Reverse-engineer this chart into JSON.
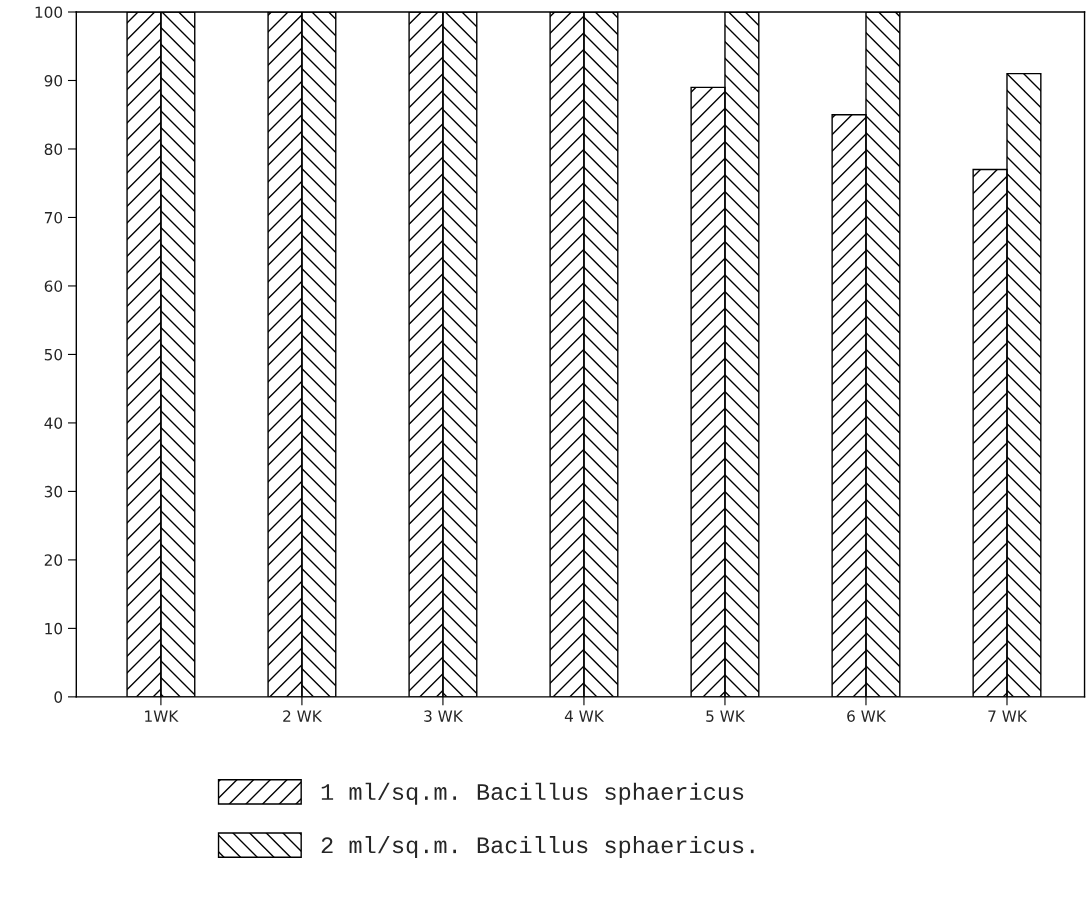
{
  "chart_data": {
    "type": "bar",
    "categories": [
      "1WK",
      "2 WK",
      "3 WK",
      "4 WK",
      "5 WK",
      "6 WK",
      "7 WK"
    ],
    "series": [
      {
        "name": "1 ml/sq.m. Bacillus sphaericus",
        "color": "#000000",
        "values": [
          100,
          100,
          100,
          100,
          89,
          85,
          77
        ]
      },
      {
        "name": "2 ml/sq.m. Bacillus sphaericus.",
        "color": "#000000",
        "values": [
          100,
          100,
          100,
          100,
          100,
          100,
          91
        ]
      }
    ],
    "ylim": [
      0,
      100
    ],
    "yticks": [
      0,
      10,
      20,
      30,
      40,
      50,
      60,
      70,
      80,
      90,
      100
    ],
    "grid": false,
    "legend": "bottom"
  }
}
